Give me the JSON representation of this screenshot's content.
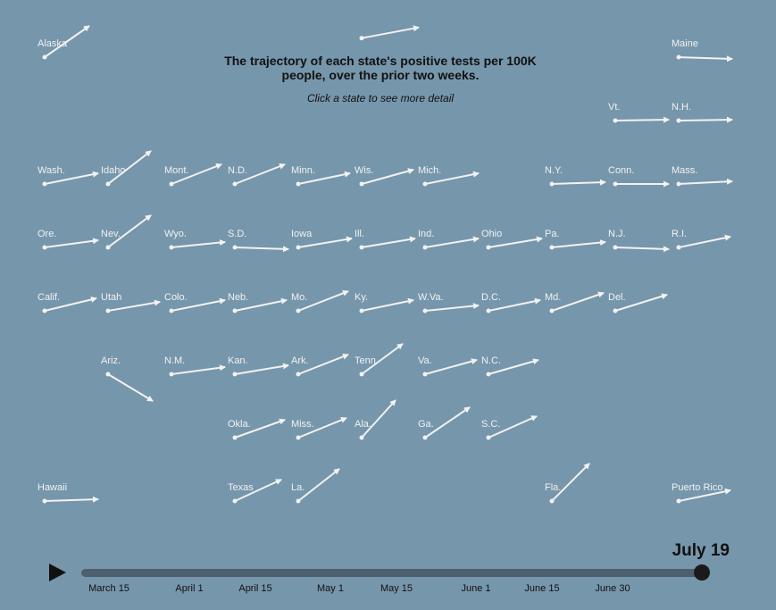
{
  "header": {
    "title_line1": "The trajectory of each state's positive tests per 100K",
    "title_line2": "people, over the prior two weeks.",
    "subtitle": "Click a state to see more detail"
  },
  "colors": {
    "background": "#7696ab",
    "arrow": "#f2f2f2",
    "track": "#4d5f6e",
    "thumb": "#1a1a1a",
    "text": "#111111"
  },
  "states": [
    {
      "label": "Alaska",
      "col": 0,
      "row": 0
    },
    {
      "label": "",
      "col": 5,
      "row": -0.3
    },
    {
      "label": "Maine",
      "col": 10,
      "row": 0
    },
    {
      "label": "Vt.",
      "col": 9,
      "row": 1
    },
    {
      "label": "N.H.",
      "col": 10,
      "row": 1
    },
    {
      "label": "Wash.",
      "col": 0,
      "row": 2
    },
    {
      "label": "Idaho",
      "col": 1,
      "row": 2
    },
    {
      "label": "Mont.",
      "col": 2,
      "row": 2
    },
    {
      "label": "N.D.",
      "col": 3,
      "row": 2
    },
    {
      "label": "Minn.",
      "col": 4,
      "row": 2
    },
    {
      "label": "Wis.",
      "col": 5,
      "row": 2
    },
    {
      "label": "Mich.",
      "col": 6,
      "row": 2
    },
    {
      "label": "N.Y.",
      "col": 8,
      "row": 2
    },
    {
      "label": "Conn.",
      "col": 9,
      "row": 2
    },
    {
      "label": "Mass.",
      "col": 10,
      "row": 2
    },
    {
      "label": "Ore.",
      "col": 0,
      "row": 3
    },
    {
      "label": "Nev.",
      "col": 1,
      "row": 3
    },
    {
      "label": "Wyo.",
      "col": 2,
      "row": 3
    },
    {
      "label": "S.D.",
      "col": 3,
      "row": 3
    },
    {
      "label": "Iowa",
      "col": 4,
      "row": 3
    },
    {
      "label": "Ill.",
      "col": 5,
      "row": 3
    },
    {
      "label": "Ind.",
      "col": 6,
      "row": 3
    },
    {
      "label": "Ohio",
      "col": 7,
      "row": 3
    },
    {
      "label": "Pa.",
      "col": 8,
      "row": 3
    },
    {
      "label": "N.J.",
      "col": 9,
      "row": 3
    },
    {
      "label": "R.I.",
      "col": 10,
      "row": 3
    },
    {
      "label": "Calif.",
      "col": 0,
      "row": 4
    },
    {
      "label": "Utah",
      "col": 1,
      "row": 4
    },
    {
      "label": "Colo.",
      "col": 2,
      "row": 4
    },
    {
      "label": "Neb.",
      "col": 3,
      "row": 4
    },
    {
      "label": "Mo.",
      "col": 4,
      "row": 4
    },
    {
      "label": "Ky.",
      "col": 5,
      "row": 4
    },
    {
      "label": "W.Va.",
      "col": 6,
      "row": 4
    },
    {
      "label": "D.C.",
      "col": 7,
      "row": 4
    },
    {
      "label": "Md.",
      "col": 8,
      "row": 4
    },
    {
      "label": "Del.",
      "col": 9,
      "row": 4
    },
    {
      "label": "Ariz.",
      "col": 1,
      "row": 5
    },
    {
      "label": "N.M.",
      "col": 2,
      "row": 5
    },
    {
      "label": "Kan.",
      "col": 3,
      "row": 5
    },
    {
      "label": "Ark.",
      "col": 4,
      "row": 5
    },
    {
      "label": "Tenn.",
      "col": 5,
      "row": 5
    },
    {
      "label": "Va.",
      "col": 6,
      "row": 5
    },
    {
      "label": "N.C.",
      "col": 7,
      "row": 5
    },
    {
      "label": "Okla.",
      "col": 3,
      "row": 6
    },
    {
      "label": "Miss.",
      "col": 4,
      "row": 6
    },
    {
      "label": "Ala.",
      "col": 5,
      "row": 6
    },
    {
      "label": "Ga.",
      "col": 6,
      "row": 6
    },
    {
      "label": "S.C.",
      "col": 7,
      "row": 6
    },
    {
      "label": "Hawaii",
      "col": 0,
      "row": 7
    },
    {
      "label": "Texas",
      "col": 3,
      "row": 7
    },
    {
      "label": "La.",
      "col": 4,
      "row": 7
    },
    {
      "label": "Fla.",
      "col": 8,
      "row": 7
    },
    {
      "label": "Puerto Rico",
      "col": 10,
      "row": 7
    }
  ],
  "timeline": {
    "current_date": "July 19",
    "ticks": [
      "March 15",
      "April 1",
      "April 15",
      "May 1",
      "May 15",
      "June 1",
      "June 15",
      "June 30"
    ],
    "progress": 1.0
  }
}
